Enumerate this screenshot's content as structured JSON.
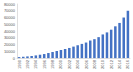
{
  "chart_data": {
    "type": "bar",
    "categories": [
      "1990",
      null,
      "1992",
      null,
      "1994",
      null,
      "1996",
      null,
      "1998",
      null,
      "2000",
      null,
      "2002",
      null,
      "2004",
      null,
      "2006",
      null,
      "2008",
      null,
      "2010",
      null,
      "2012",
      null,
      "2014",
      null,
      "2016"
    ],
    "values": [
      1500,
      2000,
      2500,
      3200,
      4000,
      5000,
      6000,
      7500,
      9000,
      10500,
      12000,
      13500,
      15000,
      17000,
      19000,
      21000,
      23000,
      26000,
      28000,
      31000,
      35000,
      38000,
      42000,
      47000,
      52000,
      60000,
      70000
    ],
    "color": "#4472c4",
    "ylim": [
      0,
      80000
    ],
    "yticks": [
      0,
      10000,
      20000,
      30000,
      40000,
      50000,
      60000,
      70000,
      80000
    ],
    "grid": false
  }
}
